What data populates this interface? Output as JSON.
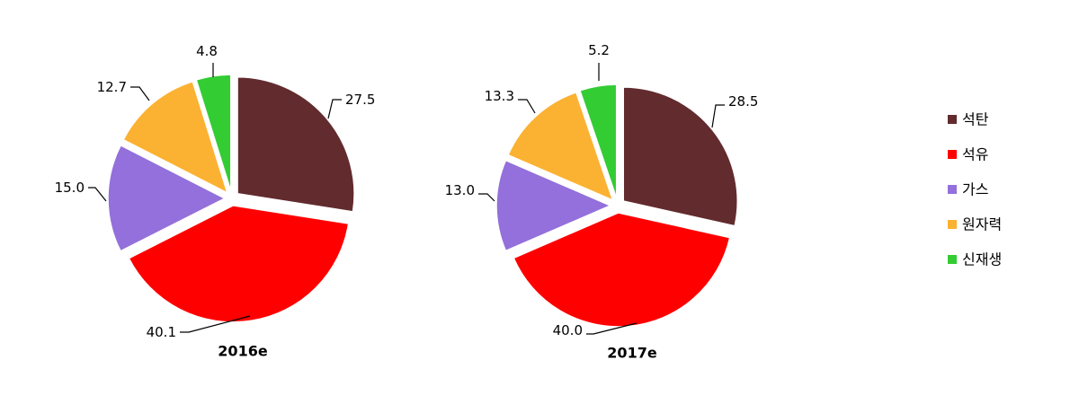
{
  "chart_data": [
    {
      "type": "pie",
      "title": "2016e",
      "categories": [
        "석탄",
        "석유",
        "가스",
        "원자력",
        "신재생"
      ],
      "values": [
        27.5,
        40.1,
        15.0,
        12.7,
        4.8
      ],
      "exploded": true,
      "start": "12 o'clock, clockwise"
    },
    {
      "type": "pie",
      "title": "2017e",
      "categories": [
        "석탄",
        "석유",
        "가스",
        "원자력",
        "신재생"
      ],
      "values": [
        28.5,
        40.0,
        13.0,
        13.3,
        5.2
      ],
      "exploded": true,
      "start": "12 o'clock, clockwise"
    }
  ],
  "legend": {
    "placement": "right",
    "items": [
      {
        "label": "석탄",
        "color": "#622B2E"
      },
      {
        "label": "석유",
        "color": "#FF0000"
      },
      {
        "label": "가스",
        "color": "#9370DB"
      },
      {
        "label": "원자력",
        "color": "#FBB232"
      },
      {
        "label": "신재생",
        "color": "#33CC33"
      }
    ]
  }
}
